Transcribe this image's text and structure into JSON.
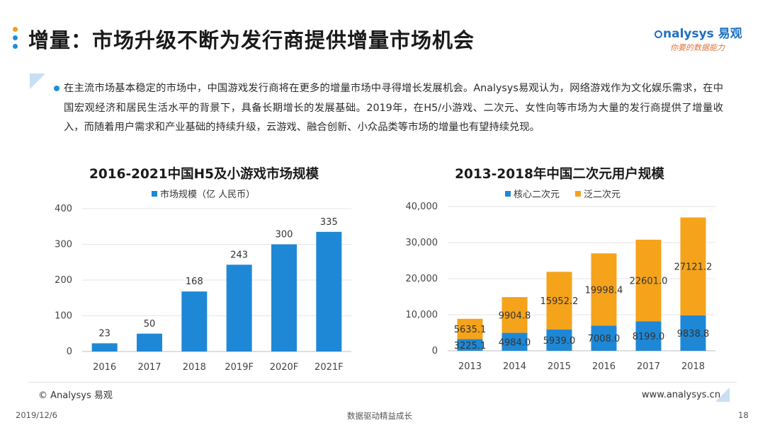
{
  "header": {
    "title": "增量：市场升级不断为发行商提供增量市场机会",
    "dot_colors": [
      "#f39c1f",
      "#1f8fd8",
      "#1f8fd8"
    ]
  },
  "logo": {
    "main": "nalysys 易观",
    "sub": "你要的数据能力"
  },
  "bullet": {
    "text": "在主流市场基本稳定的市场中，中国游戏发行商将在更多的增量市场中寻得增长发展机会。Analysys易观认为，网络游戏作为文化娱乐需求，在中国宏观经济和居民生活水平的背景下，具备长期增长的发展基础。2019年，在H5/小游戏、二次元、女性向等市场为大量的发行商提供了增量收入，而随着用户需求和产业基础的持续升级，云游戏、融合创新、小众品类等市场的增量也有望持续兑现。"
  },
  "colors": {
    "blue": "#1e88d6",
    "orange": "#f5a31b",
    "axis": "#bfbfbf",
    "grid": "#e6e6e6"
  },
  "chart_data": [
    {
      "type": "bar",
      "title": "2016-2021中国H5及小游戏市场规模",
      "categories": [
        "2016",
        "2017",
        "2018",
        "2019F",
        "2020F",
        "2021F"
      ],
      "series": [
        {
          "name": "市场规模（亿 人民币）",
          "values": [
            23,
            50,
            168,
            243,
            300,
            335
          ]
        }
      ],
      "data_labels": [
        "23",
        "50",
        "168",
        "243",
        "300",
        "335"
      ],
      "ylim": [
        0,
        400
      ],
      "yticks": [
        "0",
        "100",
        "200",
        "300",
        "400"
      ],
      "grid": true,
      "legend": "top"
    },
    {
      "type": "bar",
      "stacked": true,
      "title": "2013-2018年中国二次元用户规模",
      "categories": [
        "2013",
        "2014",
        "2015",
        "2016",
        "2017",
        "2018"
      ],
      "series": [
        {
          "name": "核心二次元",
          "values": [
            3225.1,
            4984.0,
            5939.0,
            7008.0,
            8199.0,
            9838.8
          ],
          "labels": [
            "3225.1",
            "4984.0",
            "5939.0",
            "7008.0",
            "8199.0",
            "9838.8"
          ]
        },
        {
          "name": "泛二次元",
          "values": [
            5635.1,
            9904.8,
            15952.2,
            19998.4,
            22601.0,
            27121.2
          ],
          "labels": [
            "5635.1",
            "9904.8",
            "15952.2",
            "19998.4",
            "22601.0",
            "27121.2"
          ]
        }
      ],
      "ylim": [
        0,
        40000
      ],
      "yticks": [
        "0",
        "10,000",
        "20,000",
        "30,000",
        "40,000"
      ],
      "grid": true,
      "legend": "top"
    }
  ],
  "footer": {
    "copyright": "© Analysys 易观",
    "website": "www.analysys.cn",
    "date": "2019/12/6",
    "slogan": "数据驱动精益成长",
    "page": "18"
  }
}
